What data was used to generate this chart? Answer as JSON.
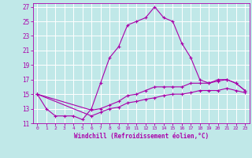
{
  "xlabel": "Windchill (Refroidissement éolien,°C)",
  "bg_color": "#c0e8e8",
  "grid_color": "#ffffff",
  "line_color": "#aa00aa",
  "xlim": [
    -0.5,
    23.5
  ],
  "ylim": [
    11,
    27.5
  ],
  "xticks": [
    0,
    1,
    2,
    3,
    4,
    5,
    6,
    7,
    8,
    9,
    10,
    11,
    12,
    13,
    14,
    15,
    16,
    17,
    18,
    19,
    20,
    21,
    22,
    23
  ],
  "yticks": [
    11,
    13,
    15,
    17,
    19,
    21,
    23,
    25,
    27
  ],
  "series1_x": [
    0,
    1,
    2,
    3,
    4,
    5,
    6,
    7,
    8,
    9,
    10,
    11,
    12,
    13,
    14,
    15,
    16,
    17,
    18,
    19,
    20,
    21,
    22,
    23
  ],
  "series1_y": [
    15,
    13,
    12,
    12,
    12,
    11.5,
    13,
    16.5,
    20,
    21.5,
    24.5,
    25,
    25.5,
    27,
    25.5,
    25,
    22,
    20,
    17,
    16.5,
    17,
    17,
    16.5,
    15.5
  ],
  "series2_x": [
    0,
    6,
    7,
    8,
    9,
    10,
    11,
    12,
    13,
    14,
    15,
    16,
    17,
    18,
    19,
    20,
    21,
    22,
    23
  ],
  "series2_y": [
    15,
    12.8,
    13,
    13.5,
    14,
    14.8,
    15,
    15.5,
    16,
    16,
    16,
    16,
    16.5,
    16.5,
    16.5,
    16.8,
    17,
    16.5,
    15.5
  ],
  "series3_x": [
    0,
    6,
    7,
    8,
    9,
    10,
    11,
    12,
    13,
    14,
    15,
    16,
    17,
    18,
    19,
    20,
    21,
    22,
    23
  ],
  "series3_y": [
    15,
    12,
    12.5,
    13,
    13.2,
    13.8,
    14,
    14.3,
    14.5,
    14.8,
    15,
    15,
    15.2,
    15.5,
    15.5,
    15.5,
    15.8,
    15.5,
    15.2
  ]
}
